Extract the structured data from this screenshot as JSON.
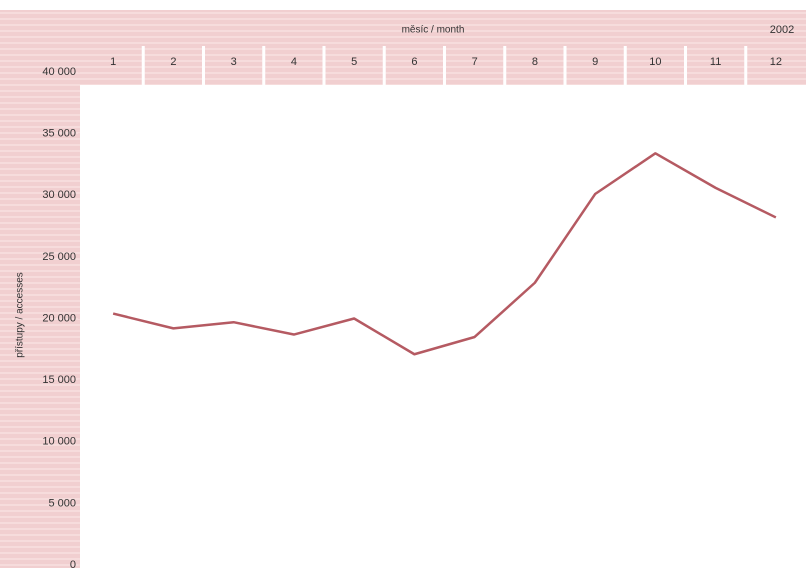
{
  "chart_data": {
    "type": "line",
    "x_label": "měsíc / month",
    "y_label": "přístupy / accesses",
    "annotation": "2002",
    "categories": [
      "1",
      "2",
      "3",
      "4",
      "5",
      "6",
      "7",
      "8",
      "9",
      "10",
      "11",
      "12"
    ],
    "series": [
      {
        "name": null,
        "color": "#b55a62",
        "values": [
          20400,
          19200,
          19700,
          18700,
          20000,
          17100,
          18500,
          22900,
          30100,
          33400,
          30600,
          28200
        ]
      }
    ],
    "ylim": [
      0,
      40000
    ],
    "yticks": [
      {
        "value": 0,
        "label": "0"
      },
      {
        "value": 5000,
        "label": "5 000"
      },
      {
        "value": 10000,
        "label": "10 000"
      },
      {
        "value": 15000,
        "label": "15 000"
      },
      {
        "value": 20000,
        "label": "20 000"
      },
      {
        "value": 25000,
        "label": "25 000"
      },
      {
        "value": 30000,
        "label": "30 000"
      },
      {
        "value": 35000,
        "label": "35 000"
      },
      {
        "value": 40000,
        "label": "40 000"
      }
    ],
    "grid": false
  }
}
